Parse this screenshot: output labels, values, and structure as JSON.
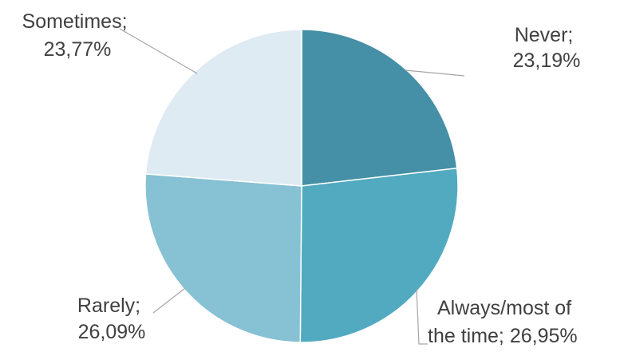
{
  "chart_data": {
    "type": "pie",
    "title": "",
    "slices": [
      {
        "label": "Never",
        "value": 23.19,
        "display": "23,19%",
        "color": "#4590a6"
      },
      {
        "label": "Always/most of the time",
        "value": 26.95,
        "display": "26,95%",
        "color": "#51aac0"
      },
      {
        "label": "Rarely",
        "value": 26.09,
        "display": "26,09%",
        "color": "#86c1d4"
      },
      {
        "label": "Sometimes",
        "value": 23.77,
        "display": "23,77%",
        "color": "#deebf3"
      }
    ],
    "label_lines": [
      [
        "Never;",
        "23,19%"
      ],
      [
        "Always/most of",
        "the time; 26,95%"
      ],
      [
        "Rarely;",
        "26,09%"
      ],
      [
        "Sometimes;",
        "23,77%"
      ]
    ],
    "legend": "none",
    "start_angle": "12 o'clock",
    "direction": "clockwise"
  }
}
